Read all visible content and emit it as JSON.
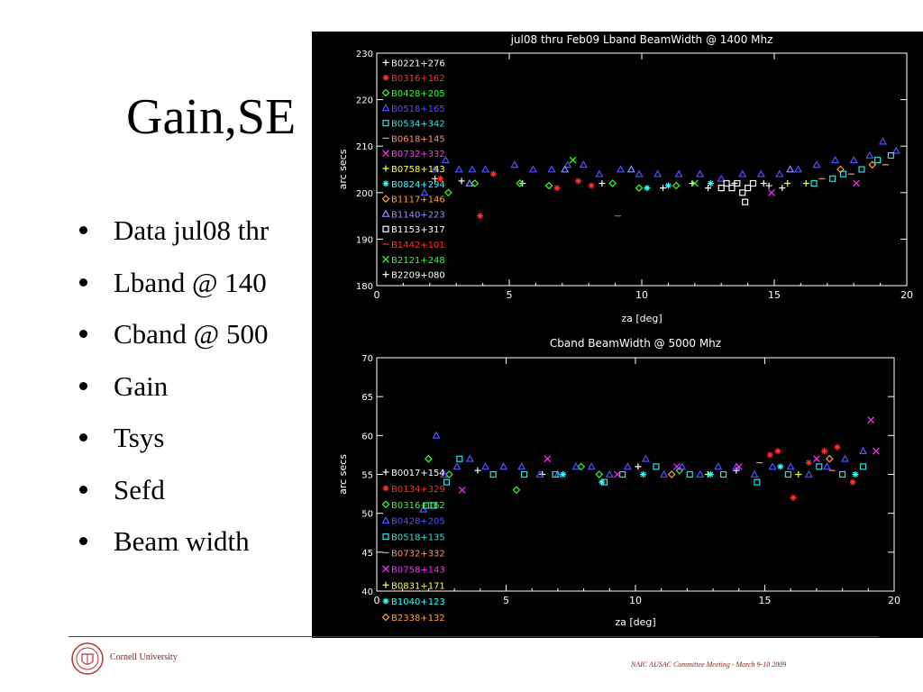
{
  "slide": {
    "title": "Gain,SE",
    "bullets": [
      "Data jul08 thr",
      "Lband @ 140",
      "Cband @ 500",
      "Gain",
      "Tsys",
      "Sefd",
      "Beam width"
    ],
    "logo_text": "Cornell University",
    "footer": "NAIC AUSAC  Committee Meeting - March  9-10 2009"
  },
  "chart_data": [
    {
      "type": "scatter",
      "title": "jul08 thru Feb09 Lband BeamWidth @ 1400 Mhz",
      "xlabel": "za [deg]",
      "ylabel": "arc secs",
      "xlim": [
        0,
        20
      ],
      "ylim": [
        180,
        230
      ],
      "xticks": [
        0,
        5,
        10,
        15,
        20
      ],
      "yticks": [
        180,
        190,
        200,
        210,
        220,
        230
      ],
      "grid": false,
      "legend_position": "left",
      "series": [
        {
          "name": "B0221+276",
          "color": "#ffffff",
          "marker": "+",
          "points": [
            [
              2.2,
              203
            ],
            [
              3.2,
              202.5
            ],
            [
              5.5,
              202
            ],
            [
              8.5,
              202
            ],
            [
              10.8,
              201
            ],
            [
              11.9,
              202
            ],
            [
              13.5,
              202
            ],
            [
              14.8,
              201.5
            ]
          ]
        },
        {
          "name": "B0316+162",
          "color": "#ff3030",
          "marker": "*",
          "points": [
            [
              2.4,
              203
            ],
            [
              3.9,
              195
            ],
            [
              4.4,
              204
            ],
            [
              6.8,
              201
            ],
            [
              7.6,
              202.5
            ],
            [
              8.1,
              201.5
            ]
          ]
        },
        {
          "name": "B0428+205",
          "color": "#30ff30",
          "marker": "◇",
          "points": [
            [
              2.7,
              200
            ],
            [
              3.7,
              202
            ],
            [
              5.4,
              202
            ],
            [
              6.5,
              201.5
            ],
            [
              8.9,
              202
            ],
            [
              9.9,
              201
            ],
            [
              11.3,
              201.5
            ]
          ]
        },
        {
          "name": "B0518+165",
          "color": "#5050ff",
          "marker": "△",
          "points": [
            [
              1.8,
              200
            ],
            [
              2.2,
              205
            ],
            [
              2.6,
              207
            ],
            [
              3.1,
              205
            ],
            [
              3.6,
              205
            ],
            [
              4.1,
              205
            ],
            [
              5.2,
              206
            ],
            [
              5.9,
              205
            ],
            [
              6.6,
              205
            ],
            [
              7.2,
              206
            ],
            [
              7.8,
              206
            ],
            [
              8.4,
              204
            ],
            [
              9.2,
              205
            ],
            [
              9.9,
              204
            ],
            [
              10.6,
              204
            ],
            [
              11.4,
              204
            ],
            [
              12.2,
              204
            ],
            [
              13.0,
              203
            ],
            [
              13.8,
              204
            ],
            [
              14.5,
              204
            ],
            [
              15.2,
              204
            ],
            [
              15.9,
              205
            ],
            [
              16.6,
              206
            ],
            [
              17.3,
              207
            ],
            [
              18.0,
              207
            ],
            [
              18.6,
              208
            ],
            [
              19.1,
              211
            ],
            [
              19.6,
              209
            ]
          ]
        },
        {
          "name": "B0534+342",
          "color": "#30e0e0",
          "marker": "□",
          "points": [
            [
              16.5,
              202
            ],
            [
              17.2,
              203
            ],
            [
              17.6,
              204
            ],
            [
              18.3,
              205
            ],
            [
              18.9,
              207
            ],
            [
              19.4,
              208
            ]
          ]
        },
        {
          "name": "B0618+145",
          "color": "#ff9070",
          "marker": "-",
          "points": [
            [
              16.8,
              203
            ],
            [
              17.9,
              204
            ],
            [
              19.2,
              206
            ]
          ]
        },
        {
          "name": "B0732+332",
          "color": "#ff30ff",
          "marker": "×",
          "points": [
            [
              14.9,
              200
            ],
            [
              18.1,
              202
            ]
          ]
        },
        {
          "name": "B0758+143",
          "color": "#ffff40",
          "marker": "+",
          "points": [
            [
              15.5,
              202
            ],
            [
              16.2,
              202
            ]
          ]
        },
        {
          "name": "B0824+294",
          "color": "#30ffff",
          "marker": "*",
          "points": [
            [
              10.2,
              201
            ],
            [
              11.0,
              201.5
            ],
            [
              12.6,
              202
            ]
          ]
        },
        {
          "name": "B1117+146",
          "color": "#ffa030",
          "marker": "◇",
          "points": [
            [
              17.5,
              205
            ],
            [
              18.7,
              206
            ]
          ]
        },
        {
          "name": "B1140+223",
          "color": "#9090ff",
          "marker": "△",
          "points": [
            [
              3.5,
              202
            ],
            [
              7.1,
              205
            ],
            [
              9.6,
              205
            ],
            [
              15.6,
              205
            ]
          ]
        },
        {
          "name": "B1153+317",
          "color": "#ffffff",
          "marker": "□",
          "points": [
            [
              13.0,
              201
            ],
            [
              13.2,
              202
            ],
            [
              13.4,
              201
            ],
            [
              13.6,
              202
            ],
            [
              13.8,
              200
            ],
            [
              14.0,
              201
            ],
            [
              14.2,
              202
            ],
            [
              13.9,
              198
            ]
          ]
        },
        {
          "name": "B1442+101",
          "color": "#ff3030",
          "marker": "-",
          "points": [
            [
              9.1,
              195
            ]
          ]
        },
        {
          "name": "B2121+248",
          "color": "#30ff30",
          "marker": "×",
          "points": [
            [
              7.4,
              207
            ],
            [
              12.0,
              202
            ]
          ]
        },
        {
          "name": "B2209+080",
          "color": "#ffffff",
          "marker": "+",
          "points": [
            [
              12.5,
              201
            ],
            [
              14.6,
              202
            ],
            [
              15.3,
              201
            ]
          ]
        }
      ]
    },
    {
      "type": "scatter",
      "title": "Cband BeamWidth @ 5000 Mhz",
      "xlabel": "za [deg]",
      "ylabel": "arc secs",
      "xlim": [
        0,
        20
      ],
      "ylim": [
        40,
        70
      ],
      "xticks": [
        0,
        5,
        10,
        15,
        20
      ],
      "yticks": [
        40,
        45,
        50,
        55,
        60,
        65,
        70
      ],
      "grid": false,
      "legend_position": "left",
      "series": [
        {
          "name": "B0017+154",
          "color": "#ffffff",
          "marker": "+",
          "points": [
            [
              3.9,
              55.5
            ],
            [
              6.4,
              55
            ],
            [
              10.1,
              56
            ],
            [
              13.9,
              55.5
            ]
          ]
        },
        {
          "name": "B0134+329",
          "color": "#ff3030",
          "marker": "*",
          "points": [
            [
              15.2,
              57.5
            ],
            [
              15.5,
              58
            ],
            [
              16.1,
              52
            ],
            [
              16.7,
              56.5
            ],
            [
              17.3,
              58
            ],
            [
              17.8,
              58.5
            ],
            [
              18.4,
              54
            ]
          ]
        },
        {
          "name": "B0316+162",
          "color": "#30ff30",
          "marker": "◇",
          "points": [
            [
              2.0,
              57
            ],
            [
              2.8,
              55
            ],
            [
              5.4,
              53
            ],
            [
              7.9,
              56
            ],
            [
              8.6,
              55
            ],
            [
              11.7,
              55.5
            ]
          ]
        },
        {
          "name": "B0428+205",
          "color": "#5050ff",
          "marker": "△",
          "points": [
            [
              1.8,
              50.5
            ],
            [
              2.3,
              60
            ],
            [
              2.6,
              55
            ],
            [
              3.1,
              56
            ],
            [
              3.6,
              57
            ],
            [
              4.2,
              56
            ],
            [
              4.9,
              56
            ],
            [
              5.6,
              56
            ],
            [
              6.3,
              55
            ],
            [
              7.0,
              55
            ],
            [
              7.7,
              56
            ],
            [
              8.3,
              56
            ],
            [
              9.0,
              55
            ],
            [
              9.7,
              56
            ],
            [
              10.4,
              57
            ],
            [
              11.1,
              55
            ],
            [
              11.8,
              56
            ],
            [
              12.5,
              55
            ],
            [
              13.2,
              56
            ],
            [
              13.9,
              56
            ],
            [
              14.6,
              55
            ],
            [
              15.3,
              56
            ],
            [
              16.0,
              56
            ],
            [
              16.7,
              55
            ],
            [
              17.4,
              56
            ],
            [
              18.1,
              57
            ],
            [
              18.8,
              58
            ]
          ]
        },
        {
          "name": "B0518+135",
          "color": "#30e0e0",
          "marker": "□",
          "points": [
            [
              1.9,
              51
            ],
            [
              2.2,
              51
            ],
            [
              2.7,
              54
            ],
            [
              3.2,
              57
            ],
            [
              4.5,
              55
            ],
            [
              5.7,
              55
            ],
            [
              6.9,
              55
            ],
            [
              8.8,
              54
            ],
            [
              9.5,
              55
            ],
            [
              10.8,
              56
            ],
            [
              12.1,
              55
            ],
            [
              13.4,
              55
            ],
            [
              14.7,
              54
            ],
            [
              15.9,
              55
            ],
            [
              17.1,
              56
            ],
            [
              18.0,
              55
            ],
            [
              18.8,
              56
            ]
          ]
        },
        {
          "name": "B0732+332",
          "color": "#ff9070",
          "marker": "-",
          "points": [
            [
              14.8,
              56.5
            ],
            [
              17.6,
              55.5
            ]
          ]
        },
        {
          "name": "B0758+143",
          "color": "#ff30ff",
          "marker": "×",
          "points": [
            [
              3.3,
              53
            ],
            [
              6.6,
              57
            ],
            [
              9.3,
              55
            ],
            [
              11.6,
              56
            ],
            [
              14.0,
              56
            ],
            [
              17.0,
              57
            ],
            [
              19.1,
              62
            ],
            [
              19.3,
              58
            ]
          ]
        },
        {
          "name": "B0831+171",
          "color": "#ffff40",
          "marker": "+",
          "points": [
            [
              12.8,
              55
            ],
            [
              16.3,
              55
            ]
          ]
        },
        {
          "name": "B1040+123",
          "color": "#30ffff",
          "marker": "*",
          "points": [
            [
              7.2,
              55
            ],
            [
              8.7,
              54
            ],
            [
              10.3,
              55
            ],
            [
              12.9,
              55
            ],
            [
              15.6,
              56
            ],
            [
              18.5,
              55
            ]
          ]
        },
        {
          "name": "B2338+132",
          "color": "#ffa030",
          "marker": "◇",
          "points": [
            [
              11.4,
              55
            ],
            [
              17.5,
              57
            ]
          ]
        }
      ]
    }
  ]
}
